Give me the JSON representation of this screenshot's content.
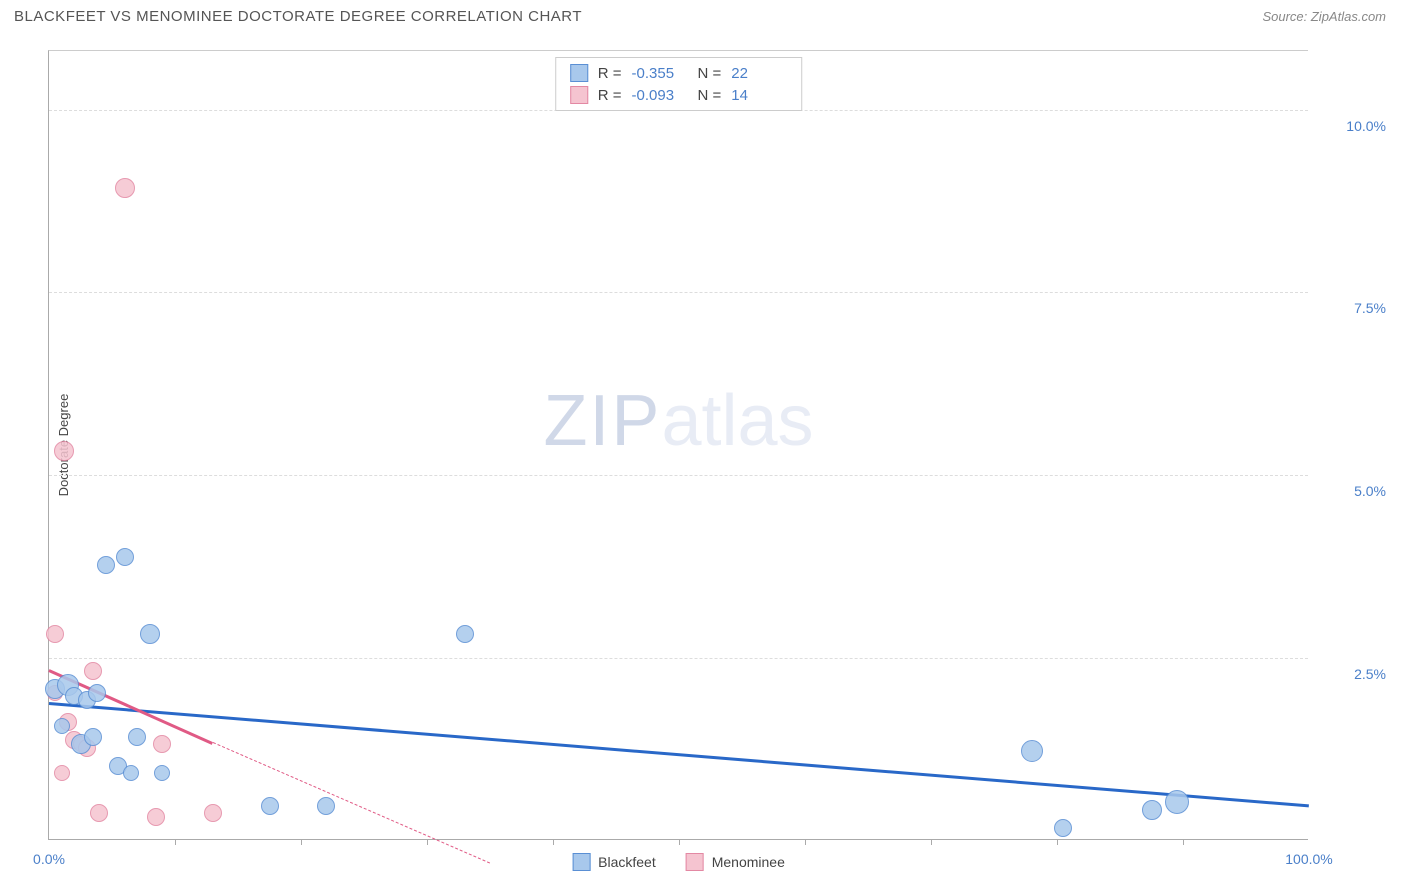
{
  "header": {
    "title": "BLACKFEET VS MENOMINEE DOCTORATE DEGREE CORRELATION CHART",
    "source": "Source: ZipAtlas.com"
  },
  "chart": {
    "ylabel": "Doctorate Degree",
    "xlim": [
      0,
      100
    ],
    "ylim": [
      0,
      10.8
    ],
    "yticks": [
      {
        "v": 2.5,
        "label": "2.5%"
      },
      {
        "v": 5.0,
        "label": "5.0%"
      },
      {
        "v": 7.5,
        "label": "7.5%"
      },
      {
        "v": 10.0,
        "label": "10.0%"
      }
    ],
    "xticks_minor": [
      10,
      20,
      30,
      40,
      50,
      60,
      70,
      80,
      90
    ],
    "xaxis_labels": {
      "left": "0.0%",
      "right": "100.0%"
    },
    "watermark": {
      "part1": "ZIP",
      "part2": "atlas"
    },
    "series": {
      "blackfeet": {
        "label": "Blackfeet",
        "fill": "#a8c8ec",
        "stroke": "#5a8fd4",
        "points": [
          {
            "x": 0.5,
            "y": 2.05,
            "r": 10
          },
          {
            "x": 1.0,
            "y": 1.55,
            "r": 8
          },
          {
            "x": 1.5,
            "y": 2.1,
            "r": 11
          },
          {
            "x": 2.0,
            "y": 1.95,
            "r": 9
          },
          {
            "x": 2.5,
            "y": 1.3,
            "r": 10
          },
          {
            "x": 3.0,
            "y": 1.9,
            "r": 9
          },
          {
            "x": 3.5,
            "y": 1.4,
            "r": 9
          },
          {
            "x": 3.8,
            "y": 2.0,
            "r": 9
          },
          {
            "x": 4.5,
            "y": 3.75,
            "r": 9
          },
          {
            "x": 5.5,
            "y": 1.0,
            "r": 9
          },
          {
            "x": 6.0,
            "y": 3.85,
            "r": 9
          },
          {
            "x": 6.5,
            "y": 0.9,
            "r": 8
          },
          {
            "x": 7.0,
            "y": 1.4,
            "r": 9
          },
          {
            "x": 8.0,
            "y": 2.8,
            "r": 10
          },
          {
            "x": 9.0,
            "y": 0.9,
            "r": 8
          },
          {
            "x": 17.5,
            "y": 0.45,
            "r": 9
          },
          {
            "x": 22.0,
            "y": 0.45,
            "r": 9
          },
          {
            "x": 33.0,
            "y": 2.8,
            "r": 9
          },
          {
            "x": 78.0,
            "y": 1.2,
            "r": 11
          },
          {
            "x": 80.5,
            "y": 0.15,
            "r": 9
          },
          {
            "x": 87.5,
            "y": 0.4,
            "r": 10
          },
          {
            "x": 89.5,
            "y": 0.5,
            "r": 12
          }
        ],
        "trend": {
          "x1": 0,
          "y1": 1.9,
          "x2": 100,
          "y2": 0.5,
          "color": "#2968c8"
        }
      },
      "menominee": {
        "label": "Menominee",
        "fill": "#f5c4d0",
        "stroke": "#e388a3",
        "points": [
          {
            "x": 0.5,
            "y": 2.8,
            "r": 9
          },
          {
            "x": 0.5,
            "y": 2.0,
            "r": 8
          },
          {
            "x": 1.0,
            "y": 0.9,
            "r": 8
          },
          {
            "x": 1.2,
            "y": 5.3,
            "r": 10
          },
          {
            "x": 1.5,
            "y": 1.6,
            "r": 9
          },
          {
            "x": 2.0,
            "y": 1.35,
            "r": 9
          },
          {
            "x": 2.5,
            "y": 1.3,
            "r": 8
          },
          {
            "x": 3.0,
            "y": 1.25,
            "r": 9
          },
          {
            "x": 3.5,
            "y": 2.3,
            "r": 9
          },
          {
            "x": 4.0,
            "y": 0.35,
            "r": 9
          },
          {
            "x": 6.0,
            "y": 8.9,
            "r": 10
          },
          {
            "x": 8.5,
            "y": 0.3,
            "r": 9
          },
          {
            "x": 9.0,
            "y": 1.3,
            "r": 9
          },
          {
            "x": 13.0,
            "y": 0.35,
            "r": 9
          }
        ],
        "trend": {
          "x1": 0,
          "y1": 2.35,
          "x2": 13,
          "y2": 1.35,
          "color": "#e05a85",
          "dash_x2": 35,
          "dash_y2": -0.3
        }
      }
    },
    "stats": [
      {
        "series": "blackfeet",
        "R": "-0.355",
        "N": "22"
      },
      {
        "series": "menominee",
        "R": "-0.093",
        "N": "14"
      }
    ]
  }
}
